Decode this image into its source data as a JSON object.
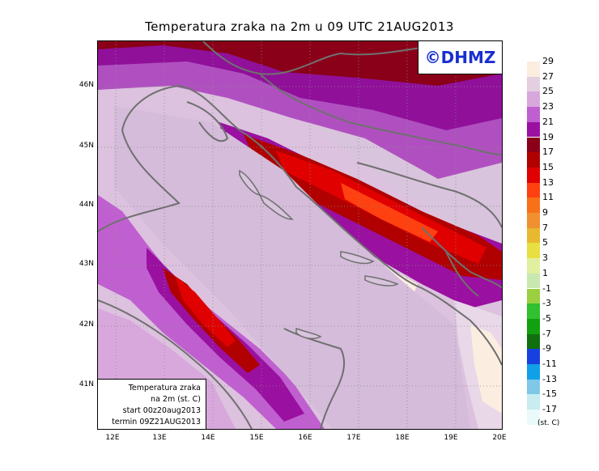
{
  "title": "Temperatura zraka na 2m u 09 UTC 21AUG2013",
  "logo": "©DHMZ",
  "infobox": {
    "line1": "Temperatura zraka",
    "line2": "na 2m (st. C)",
    "line3": "start 00z20aug2013",
    "line4": "termin 09Z21AUG2013"
  },
  "lat_labels": [
    "46N",
    "45N",
    "44N",
    "43N",
    "42N",
    "41N"
  ],
  "lon_labels": [
    "12E",
    "13E",
    "14E",
    "15E",
    "16E",
    "17E",
    "18E",
    "19E",
    "20E"
  ],
  "legend": {
    "unit": "(st. C)",
    "labels": [
      "29",
      "27",
      "25",
      "23",
      "21",
      "19",
      "17",
      "15",
      "13",
      "11",
      "9",
      "7",
      "5",
      "3",
      "1",
      "-1",
      "-3",
      "-5",
      "-7",
      "-9",
      "-11",
      "-13",
      "-15",
      "-17"
    ],
    "colors": [
      "#fbeee0",
      "#e4cfe0",
      "#d8a8dc",
      "#c060d0",
      "#9a10a0",
      "#8a0018",
      "#b00000",
      "#e00000",
      "#ff4010",
      "#f87018",
      "#f09030",
      "#e8b830",
      "#e8e040",
      "#e0f0a0",
      "#c8e8b0",
      "#9ad040",
      "#30c030",
      "#10a010",
      "#107010",
      "#1840e0",
      "#10a0e8",
      "#80c8e8",
      "#c8ecf0",
      "#eafafa"
    ]
  },
  "colors": {
    "logo_text": "#1a2fd0",
    "coastline": "#707070",
    "background_field": "#d4c0d8"
  }
}
